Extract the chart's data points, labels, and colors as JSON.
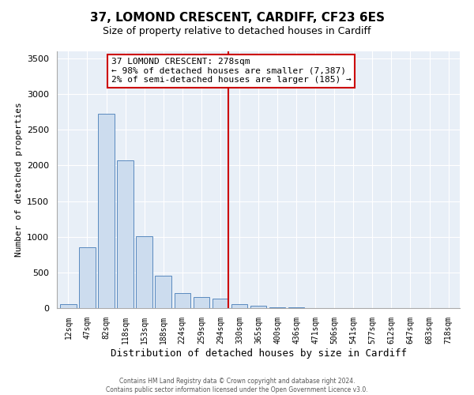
{
  "title": "37, LOMOND CRESCENT, CARDIFF, CF23 6ES",
  "subtitle": "Size of property relative to detached houses in Cardiff",
  "xlabel": "Distribution of detached houses by size in Cardiff",
  "ylabel": "Number of detached properties",
  "bar_labels": [
    "12sqm",
    "47sqm",
    "82sqm",
    "118sqm",
    "153sqm",
    "188sqm",
    "224sqm",
    "259sqm",
    "294sqm",
    "330sqm",
    "365sqm",
    "400sqm",
    "436sqm",
    "471sqm",
    "506sqm",
    "541sqm",
    "577sqm",
    "612sqm",
    "647sqm",
    "683sqm",
    "718sqm"
  ],
  "bar_values": [
    55,
    850,
    2730,
    2070,
    1010,
    450,
    210,
    150,
    130,
    55,
    30,
    15,
    10,
    5,
    3,
    2,
    2,
    1,
    1,
    1,
    1
  ],
  "bar_color": "#ccdcee",
  "bar_edge_color": "#5a8abf",
  "vline_color": "#cc0000",
  "ylim": [
    0,
    3600
  ],
  "yticks": [
    0,
    500,
    1000,
    1500,
    2000,
    2500,
    3000,
    3500
  ],
  "annotation_title": "37 LOMOND CRESCENT: 278sqm",
  "annotation_line1": "← 98% of detached houses are smaller (7,387)",
  "annotation_line2": "2% of semi-detached houses are larger (185) →",
  "annotation_box_color": "#ffffff",
  "annotation_border_color": "#cc0000",
  "footer_line1": "Contains HM Land Registry data © Crown copyright and database right 2024.",
  "footer_line2": "Contains public sector information licensed under the Open Government Licence v3.0.",
  "background_color": "#ffffff",
  "plot_bg_color": "#e8eff7",
  "grid_color": "#ffffff",
  "title_fontsize": 11,
  "subtitle_fontsize": 9
}
